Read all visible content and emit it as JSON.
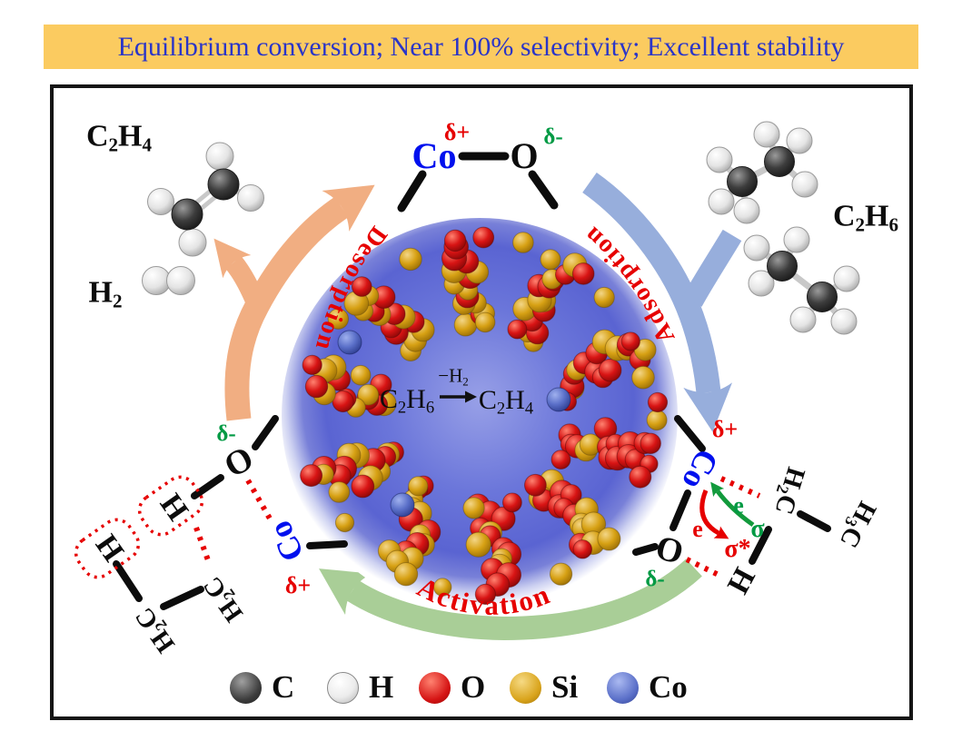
{
  "banner": {
    "text": "Equilibrium conversion; Near 100% selectivity; Excellent stability"
  },
  "colors": {
    "banner_bg": "#FBCB60",
    "banner_text": "#2A35C8",
    "metal_blue": "#0010EE",
    "delta_red": "#E60000",
    "delta_green": "#009A44",
    "arrow_orange": "#F1AE82",
    "arrow_blue": "#97AEDC",
    "arrow_green": "#A9CE97",
    "process_label_red": "#E60000"
  },
  "top_site": {
    "metal": "Co",
    "oxygen": "O",
    "delta_plus": "δ+",
    "delta_minus": "δ-"
  },
  "products": {
    "ethylene": [
      {
        "t": "C"
      },
      {
        "t": "2",
        "sub": true
      },
      {
        "t": "H"
      },
      {
        "t": "4",
        "sub": true
      }
    ],
    "hydrogen": [
      {
        "t": "H"
      },
      {
        "t": "2",
        "sub": true
      }
    ]
  },
  "reactant": {
    "ethane": [
      {
        "t": "C"
      },
      {
        "t": "2",
        "sub": true
      },
      {
        "t": "H"
      },
      {
        "t": "6",
        "sub": true
      }
    ]
  },
  "center_reaction": {
    "lhs": [
      {
        "t": "C"
      },
      {
        "t": "2",
        "sub": true
      },
      {
        "t": "H"
      },
      {
        "t": "6",
        "sub": true
      }
    ],
    "over_arrow": [
      {
        "t": "−"
      },
      {
        "t": "H"
      },
      {
        "t": "2",
        "sub": true
      }
    ],
    "rhs": [
      {
        "t": "C"
      },
      {
        "t": "2",
        "sub": true
      },
      {
        "t": "H"
      },
      {
        "t": "4",
        "sub": true
      }
    ]
  },
  "process_arrows": {
    "desorption": "Desorption",
    "adsorption": "Adsorption",
    "activation": "Activation"
  },
  "left_site": {
    "delta_minus": "δ-",
    "oxygen": "O",
    "metal": "Co",
    "delta_plus": "δ+",
    "h_a": "H",
    "h_b": "H",
    "ch2_a": [
      {
        "t": "H"
      },
      {
        "t": "2",
        "sub": true
      },
      {
        "t": "C"
      }
    ],
    "ch2_b": [
      {
        "t": "H"
      },
      {
        "t": "2",
        "sub": true
      },
      {
        "t": "C"
      }
    ]
  },
  "right_site": {
    "delta_plus": "δ+",
    "metal": "Co",
    "oxygen": "O",
    "delta_minus": "δ-",
    "sigma": "σ",
    "sigma_star": "σ*",
    "e_donate": "e",
    "e_back": "e",
    "h": "H",
    "ch2": [
      {
        "t": "H"
      },
      {
        "t": "2",
        "sub": true
      },
      {
        "t": "C"
      }
    ],
    "ch3": [
      {
        "t": "H"
      },
      {
        "t": "3",
        "sub": true
      },
      {
        "t": "C"
      }
    ]
  },
  "legend": {
    "items": [
      {
        "element": "C",
        "color": "#3c3c3c"
      },
      {
        "element": "H",
        "color": "#f0f0f0"
      },
      {
        "element": "O",
        "color": "#d51414"
      },
      {
        "element": "Si",
        "color": "#d9a41c"
      },
      {
        "element": "Co",
        "color": "#5a6fc8"
      }
    ]
  }
}
